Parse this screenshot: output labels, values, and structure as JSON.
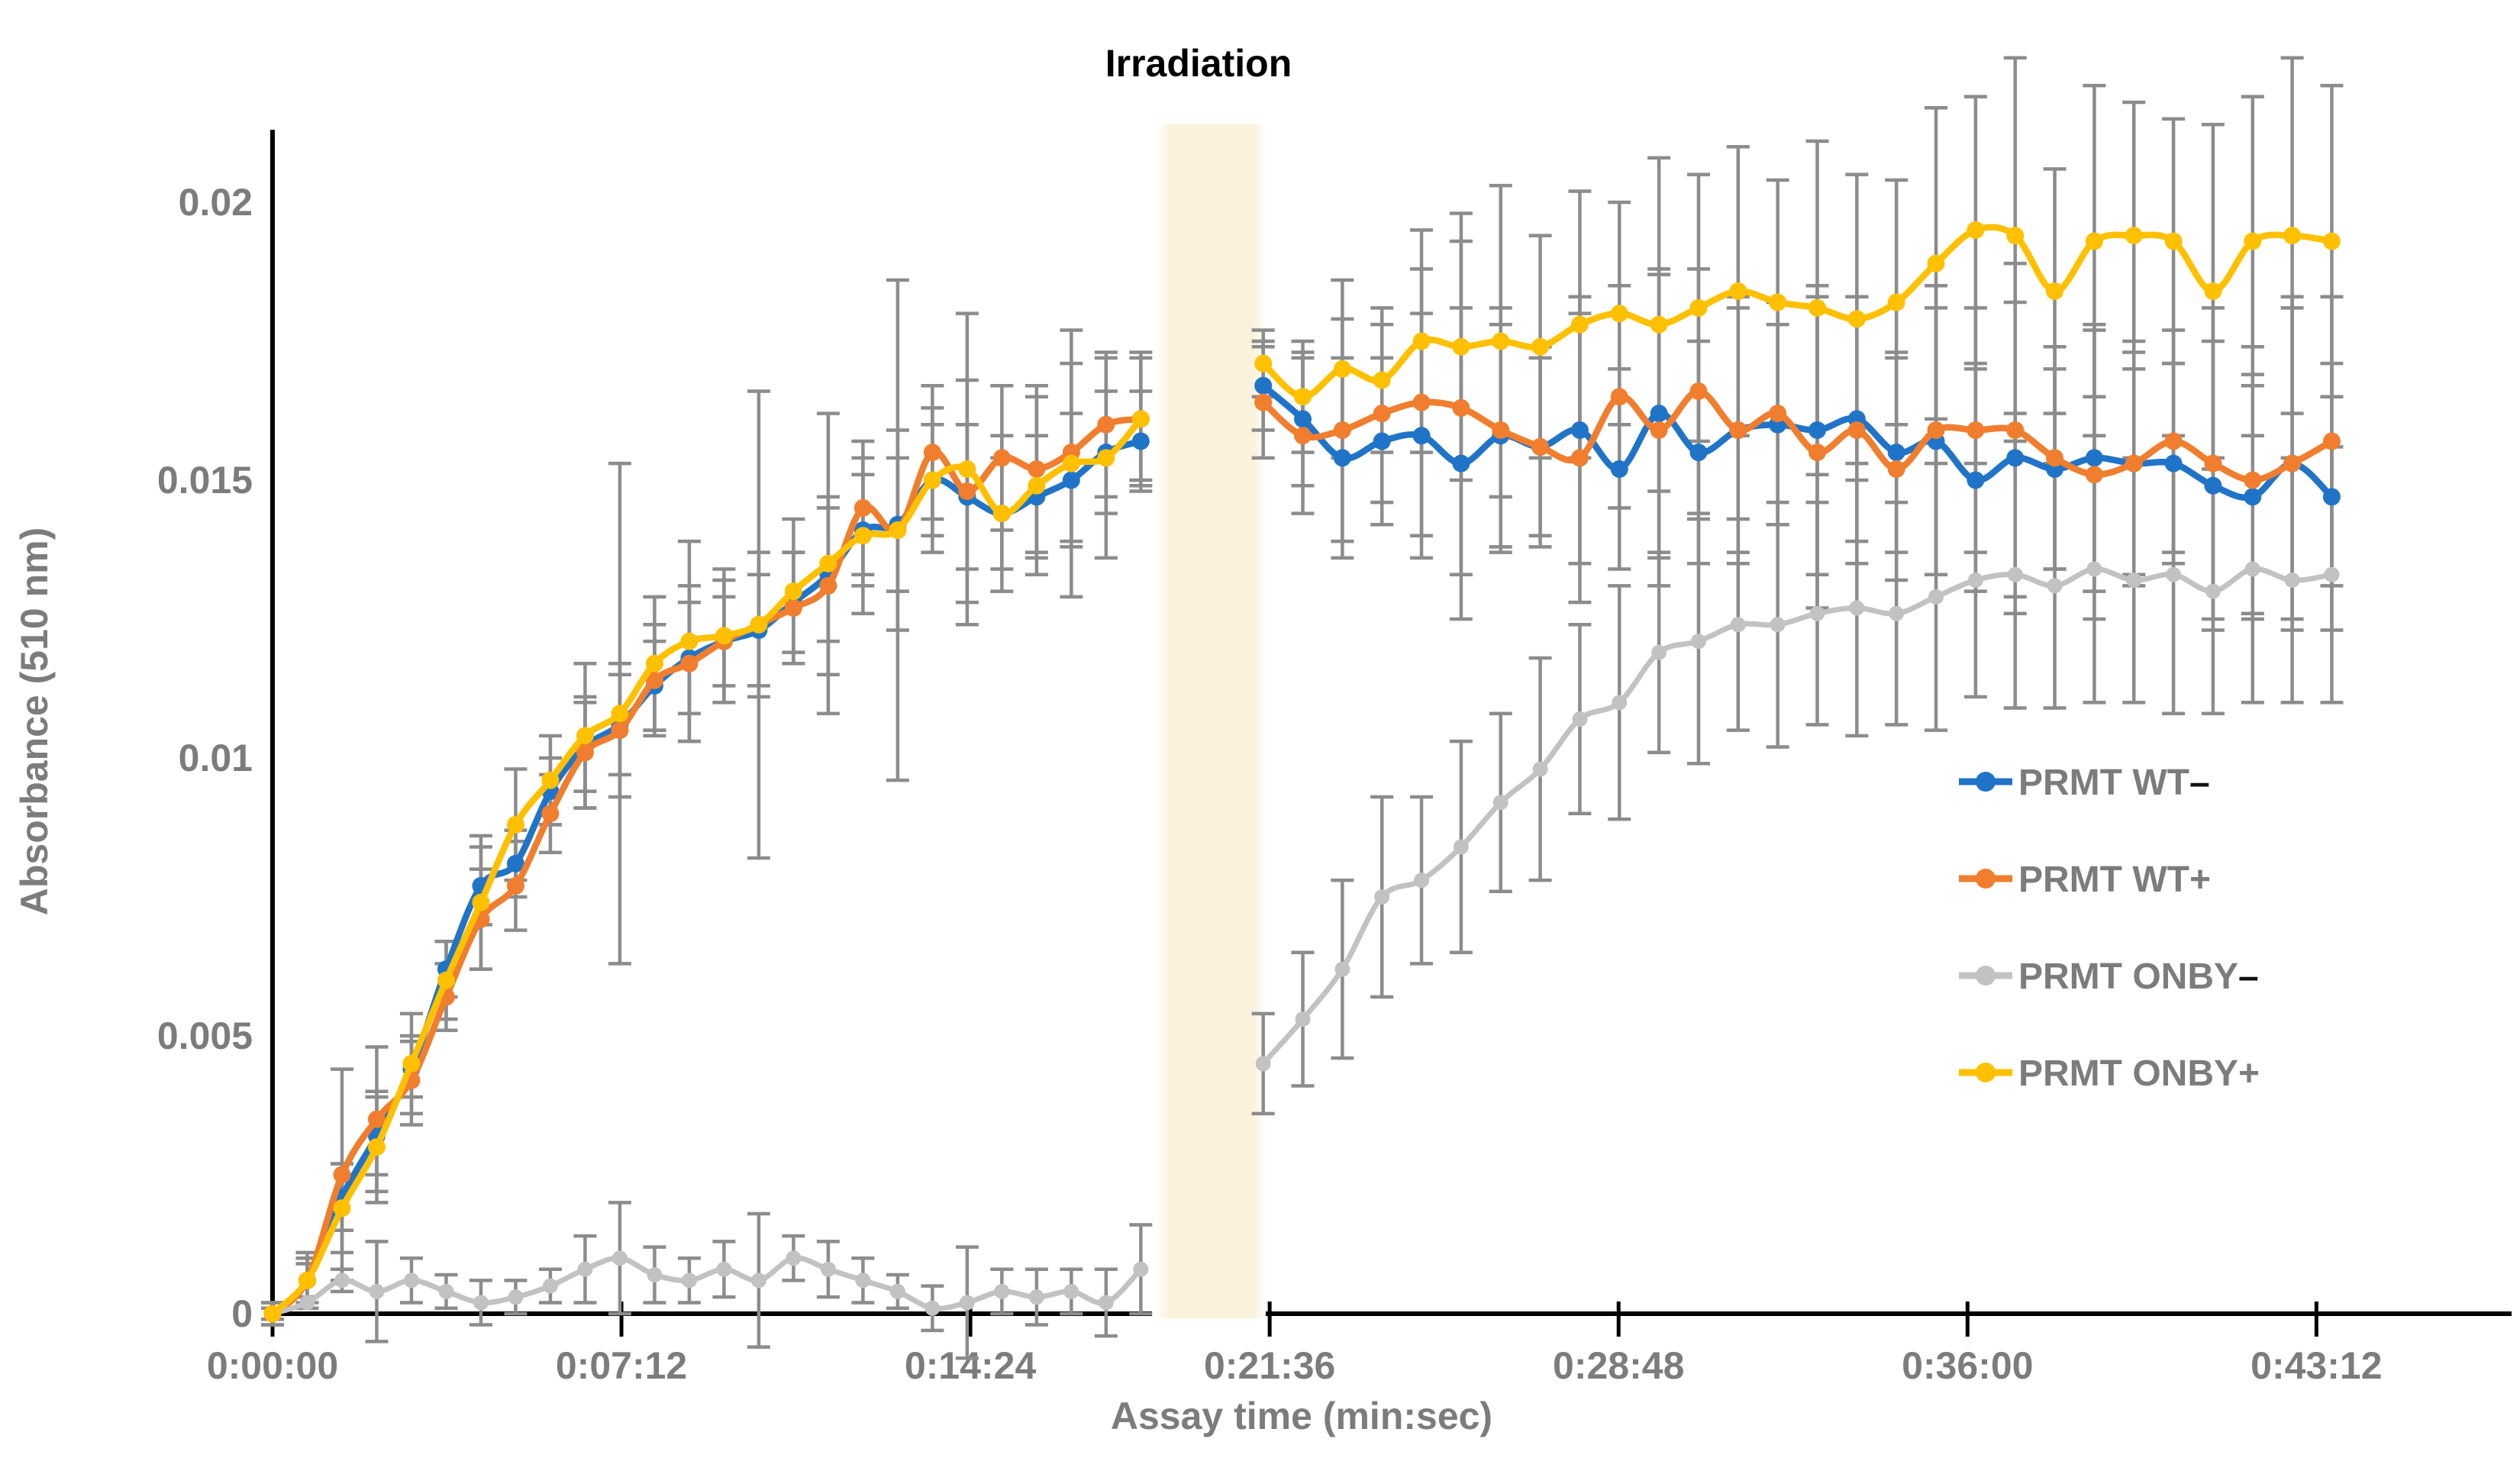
{
  "title": "Irradiation",
  "chart_data": {
    "type": "line",
    "title": "Irradiation",
    "xlabel": "Assay time (min:sec)",
    "ylabel": "Absorbance (510 nm)",
    "x_unit": "seconds",
    "ylim": [
      0,
      0.0215
    ],
    "grid": "off",
    "legend_position": "right",
    "x_ticks": [
      {
        "label": "0:00:00",
        "t": 0
      },
      {
        "label": "0:07:12",
        "t": 432
      },
      {
        "label": "0:14:24",
        "t": 864
      },
      {
        "label": "0:21:36",
        "t": 1296
      },
      {
        "label": "0:28:48",
        "t": 1728
      },
      {
        "label": "0:36:00",
        "t": 2160
      },
      {
        "label": "0:43:12",
        "t": 2592
      }
    ],
    "y_ticks": [
      {
        "label": "0",
        "v": 0
      },
      {
        "label": "0.005",
        "v": 0.005
      },
      {
        "label": "0.01",
        "v": 0.01
      },
      {
        "label": "0.015",
        "v": 0.015
      },
      {
        "label": "0.02",
        "v": 0.02
      }
    ],
    "axis_break": {
      "label": "Irradiation",
      "band_color": "#FAF2DC",
      "left_panel_end_t": 1090,
      "right_panel_start_t": 1270
    },
    "series": [
      {
        "name": "PRMT WT-",
        "legend_base": "PRMT WT",
        "legend_suffix": "–",
        "suffix_black": true,
        "color": "#2074C8",
        "pre": {
          "t": [
            0,
            43,
            86,
            129,
            172,
            215,
            258,
            301,
            344,
            387,
            430,
            473,
            516,
            559,
            602,
            645,
            688,
            731,
            774,
            817,
            860,
            903,
            946,
            989,
            1032,
            1075
          ],
          "v": [
            0.0,
            0.0006,
            0.0021,
            0.0032,
            0.0044,
            0.0062,
            0.0077,
            0.0081,
            0.0094,
            0.0102,
            0.0106,
            0.0113,
            0.0118,
            0.0121,
            0.0123,
            0.0128,
            0.0133,
            0.0141,
            0.0142,
            0.015,
            0.0147,
            0.0144,
            0.0147,
            0.015,
            0.0155,
            0.0157
          ],
          "e": [
            0.0001,
            0.0003,
            0.0006,
            0.0007,
            0.0005,
            0.0005,
            0.0007,
            0.0006,
            0.0006,
            0.0008,
            0.0009,
            0.0008,
            0.001,
            0.0008,
            0.001,
            0.0009,
            0.0012,
            0.001,
            0.0012,
            0.001,
            0.0013,
            0.001,
            0.0011,
            0.0012,
            0.0011,
            0.0009
          ]
        },
        "post": {
          "t": [
            1288,
            1337,
            1386,
            1435,
            1484,
            1533,
            1582,
            1631,
            1680,
            1729,
            1778,
            1827,
            1876,
            1925,
            1974,
            2023,
            2072,
            2121,
            2170,
            2219,
            2268,
            2317,
            2366,
            2415,
            2464,
            2513,
            2562,
            2611
          ],
          "v": [
            0.0167,
            0.0161,
            0.0154,
            0.0157,
            0.0158,
            0.0153,
            0.0158,
            0.0156,
            0.0159,
            0.0152,
            0.0162,
            0.0155,
            0.0159,
            0.016,
            0.0159,
            0.0161,
            0.0155,
            0.0157,
            0.015,
            0.0154,
            0.0152,
            0.0154,
            0.0153,
            0.0153,
            0.0149,
            0.0147,
            0.0153,
            0.0147
          ],
          "e": [
            0.0008,
            0.0012,
            0.0018,
            0.0015,
            0.0022,
            0.0028,
            0.002,
            0.0016,
            0.0024,
            0.0018,
            0.0026,
            0.002,
            0.0022,
            0.0018,
            0.0026,
            0.0022,
            0.0018,
            0.0024,
            0.002,
            0.0028,
            0.0018,
            0.0024,
            0.002,
            0.0018,
            0.0026,
            0.0022,
            0.0028,
            0.0024
          ]
        }
      },
      {
        "name": "PRMT WT+",
        "legend_base": "PRMT WT",
        "legend_suffix": "+",
        "suffix_black": false,
        "color": "#F07E2E",
        "pre": {
          "t": [
            0,
            43,
            86,
            129,
            172,
            215,
            258,
            301,
            344,
            387,
            430,
            473,
            516,
            559,
            602,
            645,
            688,
            731,
            774,
            817,
            860,
            903,
            946,
            989,
            1032,
            1075
          ],
          "v": [
            0.0,
            0.0006,
            0.0025,
            0.0035,
            0.0042,
            0.0057,
            0.0071,
            0.0077,
            0.009,
            0.0101,
            0.0105,
            0.0114,
            0.0117,
            0.0121,
            0.0124,
            0.0127,
            0.0131,
            0.0145,
            0.0141,
            0.0155,
            0.0148,
            0.0154,
            0.0152,
            0.0155,
            0.016,
            0.0161
          ],
          "e": [
            0.0002,
            0.0005,
            0.0019,
            0.0013,
            0.0008,
            0.0006,
            0.0009,
            0.0008,
            0.0007,
            0.001,
            0.0012,
            0.001,
            0.0014,
            0.0011,
            0.0013,
            0.001,
            0.0016,
            0.0012,
            0.0018,
            0.0012,
            0.002,
            0.0013,
            0.0015,
            0.0016,
            0.0013,
            0.0011
          ]
        },
        "post": {
          "t": [
            1288,
            1337,
            1386,
            1435,
            1484,
            1533,
            1582,
            1631,
            1680,
            1729,
            1778,
            1827,
            1876,
            1925,
            1974,
            2023,
            2072,
            2121,
            2170,
            2219,
            2268,
            2317,
            2366,
            2415,
            2464,
            2513,
            2562,
            2611
          ],
          "v": [
            0.0164,
            0.0158,
            0.0159,
            0.0162,
            0.0164,
            0.0163,
            0.0159,
            0.0156,
            0.0154,
            0.0165,
            0.0159,
            0.0166,
            0.0159,
            0.0162,
            0.0155,
            0.0159,
            0.0152,
            0.0159,
            0.0159,
            0.0159,
            0.0154,
            0.0151,
            0.0153,
            0.0157,
            0.0153,
            0.015,
            0.0153,
            0.0157
          ],
          "e": [
            0.001,
            0.0014,
            0.002,
            0.0016,
            0.0024,
            0.003,
            0.0022,
            0.0018,
            0.0026,
            0.002,
            0.0028,
            0.0022,
            0.0024,
            0.002,
            0.0028,
            0.0024,
            0.002,
            0.0026,
            0.0022,
            0.003,
            0.002,
            0.0026,
            0.0022,
            0.002,
            0.0028,
            0.0024,
            0.003,
            0.0026
          ]
        }
      },
      {
        "name": "PRMT ONBY-",
        "legend_base": "PRMT ONBY",
        "legend_suffix": "–",
        "suffix_black": true,
        "color": "#C2C2C2",
        "pre": {
          "t": [
            0,
            43,
            86,
            129,
            172,
            215,
            258,
            301,
            344,
            387,
            430,
            473,
            516,
            559,
            602,
            645,
            688,
            731,
            774,
            817,
            860,
            903,
            946,
            989,
            1032,
            1075
          ],
          "v": [
            0.0,
            0.0002,
            0.0006,
            0.0004,
            0.0006,
            0.0004,
            0.0002,
            0.0003,
            0.0005,
            0.0008,
            0.001,
            0.0007,
            0.0006,
            0.0008,
            0.0006,
            0.001,
            0.0008,
            0.0006,
            0.0004,
            0.0001,
            0.0002,
            0.0004,
            0.0003,
            0.0004,
            0.0002,
            0.0008
          ],
          "e": [
            0.0,
            0.0001,
            0.0002,
            0.0009,
            0.0004,
            0.0003,
            0.0004,
            0.0003,
            0.0003,
            0.0006,
            0.001,
            0.0005,
            0.0004,
            0.0005,
            0.0012,
            0.0004,
            0.0005,
            0.0004,
            0.0003,
            0.0004,
            0.001,
            0.0004,
            0.0005,
            0.0004,
            0.0006,
            0.0008
          ]
        },
        "post": {
          "t": [
            1288,
            1337,
            1386,
            1435,
            1484,
            1533,
            1582,
            1631,
            1680,
            1729,
            1778,
            1827,
            1876,
            1925,
            1974,
            2023,
            2072,
            2121,
            2170,
            2219,
            2268,
            2317,
            2366,
            2415,
            2464,
            2513,
            2562,
            2611
          ],
          "v": [
            0.0045,
            0.0053,
            0.0062,
            0.0075,
            0.0078,
            0.0084,
            0.0092,
            0.0098,
            0.0107,
            0.011,
            0.0119,
            0.0121,
            0.0124,
            0.0124,
            0.0126,
            0.0127,
            0.0126,
            0.0129,
            0.0132,
            0.0133,
            0.0131,
            0.0134,
            0.0132,
            0.0133,
            0.013,
            0.0134,
            0.0132,
            0.0133
          ],
          "e": [
            0.0009,
            0.0012,
            0.0016,
            0.0018,
            0.0015,
            0.0019,
            0.0016,
            0.002,
            0.0017,
            0.0021,
            0.0018,
            0.0022,
            0.0019,
            0.0022,
            0.002,
            0.0023,
            0.002,
            0.0024,
            0.0021,
            0.0024,
            0.0022,
            0.0024,
            0.0022,
            0.0025,
            0.0022,
            0.0024,
            0.0022,
            0.0023
          ]
        }
      },
      {
        "name": "PRMT ONBY+",
        "legend_base": "PRMT ONBY",
        "legend_suffix": "+",
        "suffix_black": false,
        "color": "#FFC000",
        "pre": {
          "t": [
            0,
            43,
            86,
            129,
            172,
            215,
            258,
            301,
            344,
            387,
            430,
            473,
            516,
            559,
            602,
            645,
            688,
            731,
            774,
            817,
            860,
            903,
            946,
            989,
            1032,
            1075
          ],
          "v": [
            0.0,
            0.0006,
            0.0019,
            0.003,
            0.0045,
            0.006,
            0.0074,
            0.0088,
            0.0096,
            0.0104,
            0.0108,
            0.0117,
            0.0121,
            0.0122,
            0.0124,
            0.013,
            0.0135,
            0.014,
            0.0141,
            0.015,
            0.0152,
            0.0144,
            0.0149,
            0.0153,
            0.0154,
            0.0161
          ],
          "e": [
            0.0002,
            0.0004,
            0.0008,
            0.001,
            0.0009,
            0.0007,
            0.0012,
            0.001,
            0.0008,
            0.0013,
            0.0045,
            0.0012,
            0.0018,
            0.0012,
            0.0042,
            0.0013,
            0.0027,
            0.0014,
            0.0045,
            0.0013,
            0.0028,
            0.0014,
            0.0016,
            0.0024,
            0.0018,
            0.0012
          ]
        },
        "post": {
          "t": [
            1288,
            1337,
            1386,
            1435,
            1484,
            1533,
            1582,
            1631,
            1680,
            1729,
            1778,
            1827,
            1876,
            1925,
            1974,
            2023,
            2072,
            2121,
            2170,
            2219,
            2268,
            2317,
            2366,
            2415,
            2464,
            2513,
            2562,
            2611
          ],
          "v": [
            0.0171,
            0.0165,
            0.017,
            0.0168,
            0.0175,
            0.0174,
            0.0175,
            0.0174,
            0.0178,
            0.018,
            0.0178,
            0.0181,
            0.0184,
            0.0182,
            0.0181,
            0.0179,
            0.0182,
            0.0189,
            0.0195,
            0.0194,
            0.0184,
            0.0193,
            0.0194,
            0.0193,
            0.0184,
            0.0193,
            0.0194,
            0.0193
          ],
          "e": [
            0.0006,
            0.001,
            0.0016,
            0.0013,
            0.002,
            0.0024,
            0.0028,
            0.002,
            0.0024,
            0.002,
            0.003,
            0.0024,
            0.0026,
            0.0022,
            0.003,
            0.0026,
            0.0022,
            0.0028,
            0.0024,
            0.0032,
            0.0022,
            0.0028,
            0.0024,
            0.0022,
            0.003,
            0.0026,
            0.0032,
            0.0028
          ]
        }
      }
    ]
  },
  "legend": {
    "items": [
      {
        "base": "PRMT WT",
        "suffix": "–"
      },
      {
        "base": "PRMT WT",
        "suffix": "+"
      },
      {
        "base": "PRMT ONBY",
        "suffix": "–"
      },
      {
        "base": "PRMT ONBY",
        "suffix": "+"
      }
    ]
  },
  "style_colors": {
    "error_bar": "#8C8C8C",
    "axis_line": "#000000",
    "axis_text": "#7C7C7C",
    "band": "#FAF2DC"
  }
}
